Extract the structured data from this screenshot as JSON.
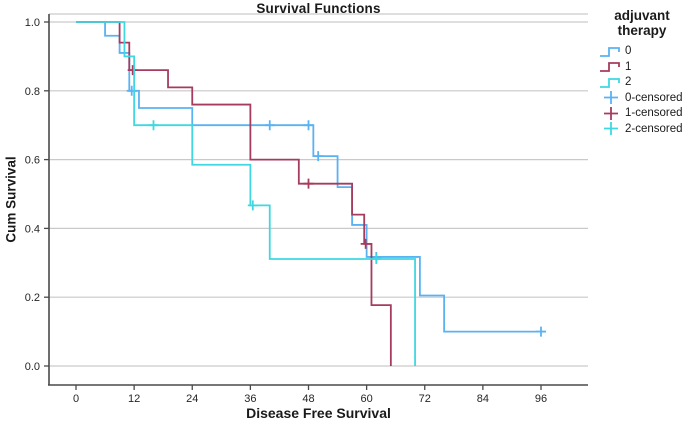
{
  "chart_data": {
    "type": "line",
    "subtype": "kaplan-meier-step",
    "title": "Survival Functions",
    "xlabel": "Disease Free Survival",
    "ylabel": "Cum Survival",
    "xticks": {
      "values": [
        0,
        12,
        24,
        36,
        48,
        60,
        72,
        84,
        96
      ],
      "labels": [
        "0",
        "12",
        "24",
        "36",
        "48",
        "60",
        "72",
        "84",
        "96"
      ]
    },
    "yticks": {
      "values": [
        1.0,
        0.8,
        0.6,
        0.4,
        0.2,
        0.0
      ],
      "labels": [
        "1.0",
        "0.8",
        "0.6",
        "0.4",
        "0.2",
        "0.0"
      ]
    },
    "xlim": [
      0,
      96
    ],
    "ylim": [
      0.0,
      1.0
    ],
    "grid": "horizontal",
    "colors": {
      "series0": "#5AB2F2",
      "series1": "#A53C5E",
      "series2": "#3FD8E2"
    },
    "series": [
      {
        "name": "0",
        "color_key": "series0",
        "steps": [
          [
            0,
            1.0
          ],
          [
            6,
            0.96
          ],
          [
            9,
            0.91
          ],
          [
            11,
            0.8
          ],
          [
            13,
            0.75
          ],
          [
            24,
            0.7
          ],
          [
            49,
            0.61
          ],
          [
            54,
            0.52
          ],
          [
            57,
            0.41
          ],
          [
            60,
            0.317
          ],
          [
            71,
            0.205
          ],
          [
            76,
            0.1
          ]
        ],
        "end_t": 97,
        "censored": [
          [
            11.5,
            0.8
          ],
          [
            40,
            0.7
          ],
          [
            48,
            0.7
          ],
          [
            50,
            0.61
          ],
          [
            62,
            0.317
          ],
          [
            96,
            0.1
          ]
        ]
      },
      {
        "name": "1",
        "color_key": "series1",
        "steps": [
          [
            0,
            1.0
          ],
          [
            9,
            0.94
          ],
          [
            11,
            0.86
          ],
          [
            19,
            0.81
          ],
          [
            24,
            0.76
          ],
          [
            36,
            0.6
          ],
          [
            46,
            0.53
          ],
          [
            57,
            0.44
          ],
          [
            59.5,
            0.355
          ],
          [
            61,
            0.177
          ],
          [
            65,
            0.0
          ]
        ],
        "end_t": 65,
        "censored": [
          [
            11.7,
            0.86
          ],
          [
            48,
            0.53
          ],
          [
            59.8,
            0.355
          ]
        ]
      },
      {
        "name": "2",
        "color_key": "series2",
        "steps": [
          [
            0,
            1.0
          ],
          [
            10,
            0.9
          ],
          [
            12,
            0.7
          ],
          [
            24,
            0.585
          ],
          [
            36,
            0.467
          ],
          [
            40,
            0.311
          ],
          [
            70,
            0.0
          ]
        ],
        "end_t": 70,
        "censored": [
          [
            16,
            0.7
          ],
          [
            36.5,
            0.467
          ],
          [
            62,
            0.311
          ]
        ]
      }
    ],
    "legend": {
      "title": "adjuvant therapy",
      "position": "right",
      "entries": [
        {
          "label": "0",
          "color_key": "series0",
          "glyph": "step-line"
        },
        {
          "label": "1",
          "color_key": "series1",
          "glyph": "step-line"
        },
        {
          "label": "2",
          "color_key": "series2",
          "glyph": "step-line"
        },
        {
          "label": "0-censored",
          "color_key": "series0",
          "glyph": "plus"
        },
        {
          "label": "1-censored",
          "color_key": "series1",
          "glyph": "plus"
        },
        {
          "label": "2-censored",
          "color_key": "series2",
          "glyph": "plus"
        }
      ]
    }
  }
}
